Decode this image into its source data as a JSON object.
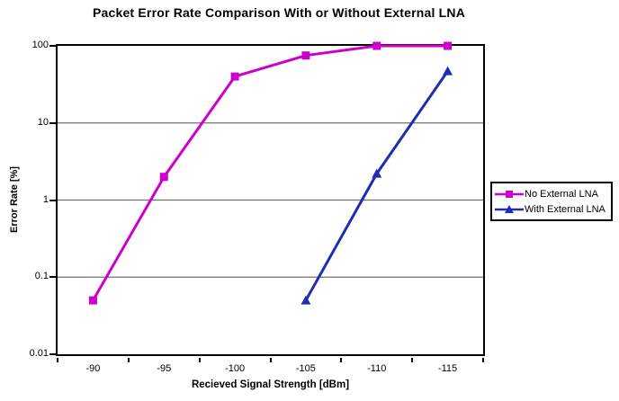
{
  "title": "Packet Error Rate Comparison With or Without External LNA",
  "chart_data": {
    "type": "line",
    "title": "Packet Error Rate Comparison With or Without External LNA",
    "xlabel": "Recieved Signal Strength [dBm]",
    "ylabel": "Error Rate [%]",
    "x_categories": [
      -90,
      -95,
      -100,
      -105,
      -110,
      -115
    ],
    "y_scale": "log",
    "ylim": [
      0.01,
      100
    ],
    "y_ticks": [
      100,
      10,
      1,
      0.1,
      0.01
    ],
    "grid": "horizontal-major-gridlines",
    "legend_position": "right-outside",
    "series": [
      {
        "name": "No External LNA",
        "color": "#cc00cc",
        "marker": "square",
        "points": [
          [
            -90,
            0.05
          ],
          [
            -95,
            2
          ],
          [
            -100,
            40
          ],
          [
            -105,
            75
          ],
          [
            -110,
            100
          ],
          [
            -115,
            100
          ]
        ]
      },
      {
        "name": "With External LNA",
        "color": "#1f2db2",
        "marker": "triangle",
        "points": [
          [
            -105,
            0.05
          ],
          [
            -110,
            2.2
          ],
          [
            -115,
            47
          ]
        ]
      }
    ]
  },
  "colors": {
    "gridline": "#707070",
    "axis": "#000000",
    "background": "#ffffff"
  }
}
